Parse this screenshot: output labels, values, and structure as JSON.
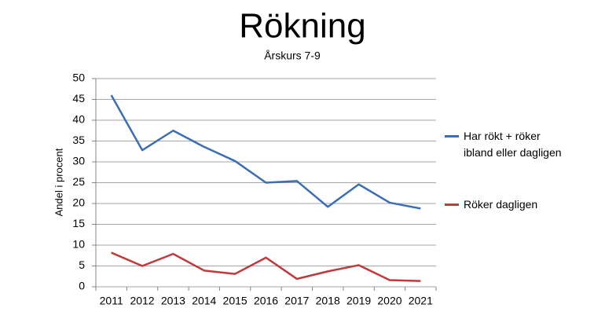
{
  "chart_data": {
    "type": "line",
    "title": "Rökning",
    "subtitle": "Årskurs 7-9",
    "y_label": "Andel i procent",
    "categories": [
      "2011",
      "2012",
      "2013",
      "2014",
      "2015",
      "2016",
      "2017",
      "2018",
      "2019",
      "2020",
      "2021"
    ],
    "series": [
      {
        "name": "Har rökt + röker ibland eller dagligen",
        "color": "#3a6fb5",
        "values": [
          46,
          32.8,
          37.5,
          33.6,
          30.2,
          25,
          25.4,
          19.2,
          24.6,
          20.2,
          18.8
        ]
      },
      {
        "name": "Röker dagligen",
        "color": "#c0393b",
        "values": [
          8.2,
          5,
          7.9,
          3.9,
          3.1,
          7,
          1.9,
          3.7,
          5.2,
          1.6,
          1.4
        ]
      }
    ],
    "ylim": [
      0,
      50
    ],
    "yticks": [
      0,
      5,
      10,
      15,
      20,
      25,
      30,
      35,
      40,
      45,
      50
    ],
    "grid": true,
    "legend": "right"
  }
}
